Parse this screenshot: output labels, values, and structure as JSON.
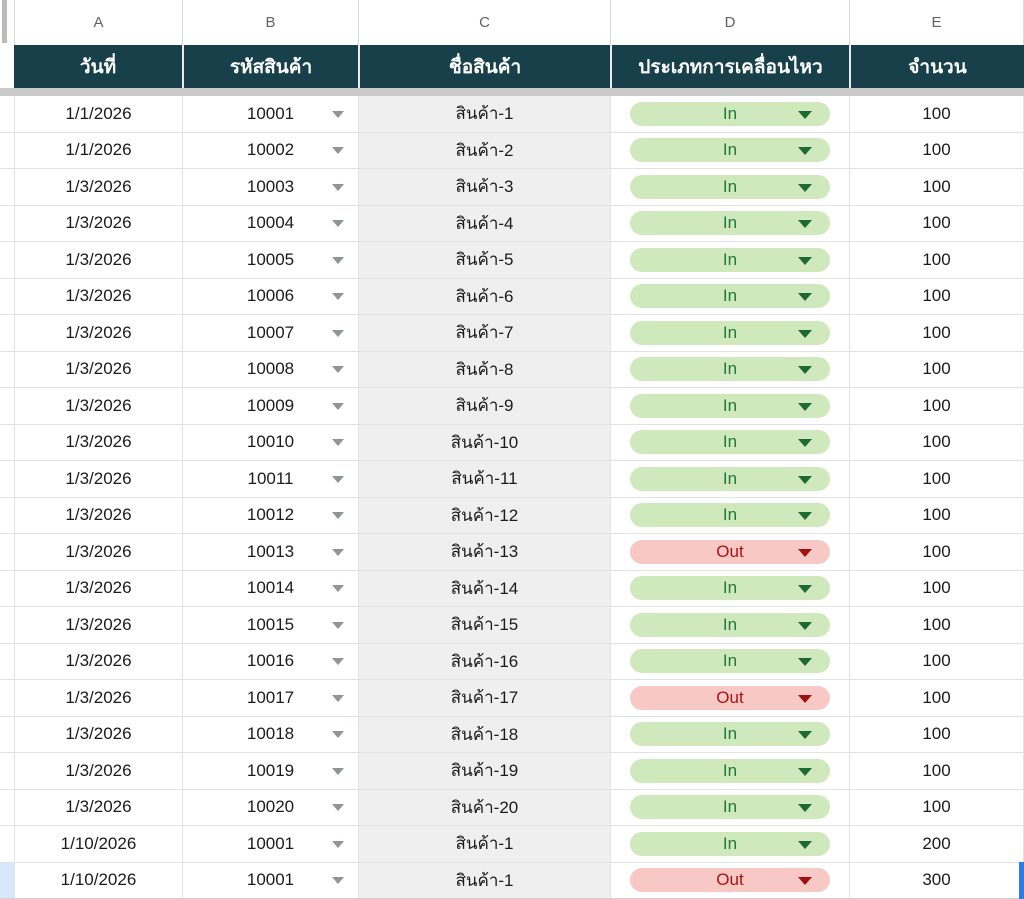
{
  "sheet": {
    "column_letters": [
      "A",
      "B",
      "C",
      "D",
      "E"
    ],
    "headers": {
      "date": "วันที่",
      "code": "รหัสสินค้า",
      "name": "ชื่อสินค้า",
      "movement": "ประเภทการเคลื่อนไหว",
      "qty": "จำนวน"
    },
    "colors": {
      "header_bg": "#17404a",
      "in_chip_bg": "#cfe9bc",
      "in_chip_text": "#20793a",
      "out_chip_bg": "#f8c9c4",
      "out_chip_text": "#a81414",
      "name_column_bg": "#efefef",
      "frozen_divider": "#c9c9c9",
      "selection_blue": "#2b7de9"
    },
    "icons": {
      "code_dropdown": "chevron-down-icon",
      "chip_dropdown": "chevron-down-icon"
    },
    "rows": [
      {
        "date": "1/1/2026",
        "code": "10001",
        "name": "สินค้า-1",
        "movement": "In",
        "qty": "100"
      },
      {
        "date": "1/1/2026",
        "code": "10002",
        "name": "สินค้า-2",
        "movement": "In",
        "qty": "100"
      },
      {
        "date": "1/3/2026",
        "code": "10003",
        "name": "สินค้า-3",
        "movement": "In",
        "qty": "100"
      },
      {
        "date": "1/3/2026",
        "code": "10004",
        "name": "สินค้า-4",
        "movement": "In",
        "qty": "100"
      },
      {
        "date": "1/3/2026",
        "code": "10005",
        "name": "สินค้า-5",
        "movement": "In",
        "qty": "100"
      },
      {
        "date": "1/3/2026",
        "code": "10006",
        "name": "สินค้า-6",
        "movement": "In",
        "qty": "100"
      },
      {
        "date": "1/3/2026",
        "code": "10007",
        "name": "สินค้า-7",
        "movement": "In",
        "qty": "100"
      },
      {
        "date": "1/3/2026",
        "code": "10008",
        "name": "สินค้า-8",
        "movement": "In",
        "qty": "100"
      },
      {
        "date": "1/3/2026",
        "code": "10009",
        "name": "สินค้า-9",
        "movement": "In",
        "qty": "100"
      },
      {
        "date": "1/3/2026",
        "code": "10010",
        "name": "สินค้า-10",
        "movement": "In",
        "qty": "100"
      },
      {
        "date": "1/3/2026",
        "code": "10011",
        "name": "สินค้า-11",
        "movement": "In",
        "qty": "100"
      },
      {
        "date": "1/3/2026",
        "code": "10012",
        "name": "สินค้า-12",
        "movement": "In",
        "qty": "100"
      },
      {
        "date": "1/3/2026",
        "code": "10013",
        "name": "สินค้า-13",
        "movement": "Out",
        "qty": "100"
      },
      {
        "date": "1/3/2026",
        "code": "10014",
        "name": "สินค้า-14",
        "movement": "In",
        "qty": "100"
      },
      {
        "date": "1/3/2026",
        "code": "10015",
        "name": "สินค้า-15",
        "movement": "In",
        "qty": "100"
      },
      {
        "date": "1/3/2026",
        "code": "10016",
        "name": "สินค้า-16",
        "movement": "In",
        "qty": "100"
      },
      {
        "date": "1/3/2026",
        "code": "10017",
        "name": "สินค้า-17",
        "movement": "Out",
        "qty": "100"
      },
      {
        "date": "1/3/2026",
        "code": "10018",
        "name": "สินค้า-18",
        "movement": "In",
        "qty": "100"
      },
      {
        "date": "1/3/2026",
        "code": "10019",
        "name": "สินค้า-19",
        "movement": "In",
        "qty": "100"
      },
      {
        "date": "1/3/2026",
        "code": "10020",
        "name": "สินค้า-20",
        "movement": "In",
        "qty": "100"
      },
      {
        "date": "1/10/2026",
        "code": "10001",
        "name": "สินค้า-1",
        "movement": "In",
        "qty": "200"
      },
      {
        "date": "1/10/2026",
        "code": "10001",
        "name": "สินค้า-1",
        "movement": "Out",
        "qty": "300"
      }
    ]
  }
}
